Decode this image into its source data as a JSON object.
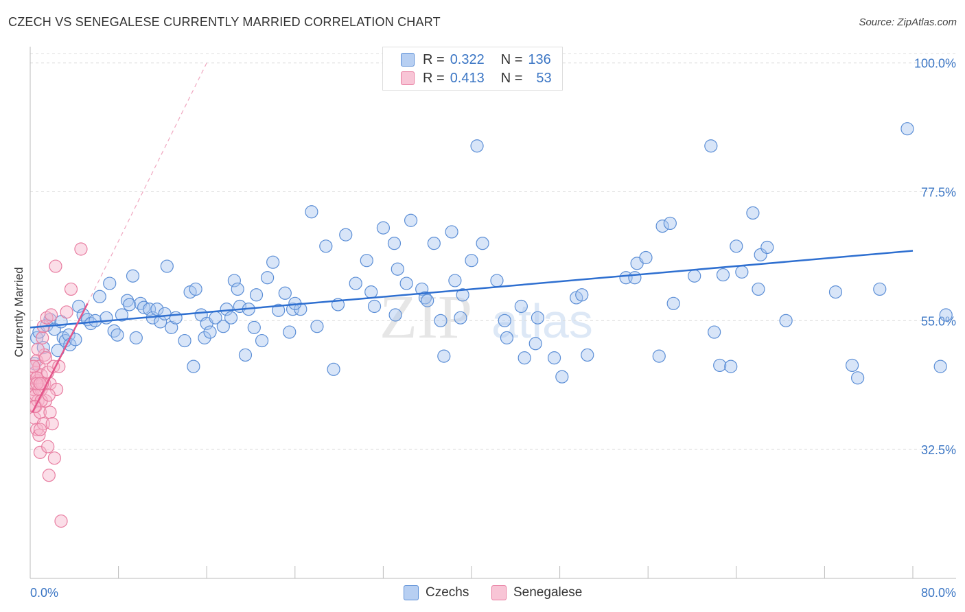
{
  "title": "CZECH VS SENEGALESE CURRENTLY MARRIED CORRELATION CHART",
  "source": "Source: ZipAtlas.com",
  "watermark": {
    "zip": "ZIP",
    "atlas": "atlas"
  },
  "colors": {
    "czech": "#5b8ed6",
    "czech_fill": "#a9c6f0",
    "senegalese": "#e87ca0",
    "senegalese_fill": "#f6b6cb",
    "accent_text": "#3a75c4"
  },
  "legend": {
    "czech": {
      "r_label": "R =",
      "r_value": "0.322",
      "n_label": "N =",
      "n_value": "136"
    },
    "senegalese": {
      "r_label": "R =",
      "r_value": "0.413",
      "n_label": "N =",
      "n_value": "53"
    }
  },
  "bottom_legend": {
    "czech": "Czechs",
    "senegalese": "Senegalese"
  },
  "chart_data": {
    "type": "scatter",
    "title": "CZECH VS SENEGALESE CURRENTLY MARRIED CORRELATION CHART",
    "xlabel": "",
    "ylabel": "Currently Married",
    "xlim": [
      0,
      80
    ],
    "ylim": [
      10,
      102
    ],
    "x_tick_labels": [
      "0.0%",
      "80.0%"
    ],
    "y_ticks": [
      100,
      77.5,
      55,
      32.5
    ],
    "y_tick_labels": [
      "100.0%",
      "77.5%",
      "55.0%",
      "32.5%"
    ],
    "grid": true,
    "legend_position": "top-center",
    "series": [
      {
        "name": "Czechs",
        "color": "#5b8ed6",
        "trend": {
          "x": [
            0,
            80
          ],
          "y": [
            53.8,
            67.2
          ]
        },
        "points": [
          [
            0.4,
            47.5
          ],
          [
            0.6,
            52.0
          ],
          [
            0.8,
            53.0
          ],
          [
            1.2,
            50.3
          ],
          [
            1.5,
            54.2
          ],
          [
            1.8,
            55.2
          ],
          [
            2.2,
            53.5
          ],
          [
            2.5,
            49.8
          ],
          [
            2.8,
            54.8
          ],
          [
            3.0,
            52.0
          ],
          [
            3.2,
            51.5
          ],
          [
            3.5,
            52.5
          ],
          [
            3.6,
            50.8
          ],
          [
            4.1,
            51.7
          ],
          [
            4.4,
            57.5
          ],
          [
            4.8,
            56.0
          ],
          [
            5.2,
            55.2
          ],
          [
            5.5,
            54.5
          ],
          [
            5.9,
            55.0
          ],
          [
            6.3,
            59.2
          ],
          [
            6.9,
            55.5
          ],
          [
            7.2,
            61.5
          ],
          [
            7.6,
            53.2
          ],
          [
            7.9,
            52.5
          ],
          [
            8.3,
            56.0
          ],
          [
            8.8,
            58.5
          ],
          [
            9.0,
            57.8
          ],
          [
            9.3,
            62.8
          ],
          [
            9.6,
            52.0
          ],
          [
            10.0,
            58.0
          ],
          [
            10.3,
            57.3
          ],
          [
            10.8,
            57.0
          ],
          [
            11.1,
            55.5
          ],
          [
            11.5,
            57.0
          ],
          [
            11.8,
            54.8
          ],
          [
            12.2,
            56.2
          ],
          [
            12.4,
            64.5
          ],
          [
            12.8,
            53.8
          ],
          [
            13.2,
            55.5
          ],
          [
            14.0,
            51.5
          ],
          [
            14.5,
            60.0
          ],
          [
            14.8,
            47.0
          ],
          [
            15.0,
            60.5
          ],
          [
            15.5,
            56.0
          ],
          [
            15.8,
            52.0
          ],
          [
            16.0,
            54.5
          ],
          [
            16.3,
            53.0
          ],
          [
            16.8,
            55.5
          ],
          [
            17.5,
            54.0
          ],
          [
            17.8,
            57.0
          ],
          [
            18.2,
            55.5
          ],
          [
            18.5,
            62.0
          ],
          [
            18.8,
            60.5
          ],
          [
            19.0,
            57.5
          ],
          [
            19.5,
            49.0
          ],
          [
            19.8,
            57.0
          ],
          [
            20.3,
            53.8
          ],
          [
            20.5,
            59.5
          ],
          [
            21.0,
            51.5
          ],
          [
            21.5,
            62.5
          ],
          [
            22.0,
            65.2
          ],
          [
            22.5,
            56.8
          ],
          [
            23.1,
            59.8
          ],
          [
            23.5,
            53.0
          ],
          [
            23.8,
            57.0
          ],
          [
            24.5,
            57.0
          ],
          [
            25.5,
            74.0
          ],
          [
            26.0,
            54.0
          ],
          [
            26.8,
            68.0
          ],
          [
            27.5,
            46.5
          ],
          [
            27.9,
            57.8
          ],
          [
            28.6,
            70.0
          ],
          [
            29.5,
            61.5
          ],
          [
            30.5,
            65.5
          ],
          [
            30.9,
            60.0
          ],
          [
            31.2,
            57.5
          ],
          [
            32.0,
            71.2
          ],
          [
            33.0,
            68.5
          ],
          [
            33.1,
            56.0
          ],
          [
            33.3,
            64.0
          ],
          [
            34.1,
            61.5
          ],
          [
            34.5,
            72.5
          ],
          [
            35.5,
            60.5
          ],
          [
            35.8,
            59.0
          ],
          [
            36.0,
            58.5
          ],
          [
            36.6,
            68.5
          ],
          [
            37.2,
            55.0
          ],
          [
            37.5,
            48.8
          ],
          [
            38.2,
            70.5
          ],
          [
            38.5,
            62.0
          ],
          [
            39.0,
            55.5
          ],
          [
            39.2,
            59.5
          ],
          [
            40.0,
            65.5
          ],
          [
            40.5,
            85.5
          ],
          [
            41.0,
            68.5
          ],
          [
            42.3,
            62.0
          ],
          [
            43.0,
            55.0
          ],
          [
            43.2,
            52.0
          ],
          [
            44.5,
            57.5
          ],
          [
            44.8,
            48.5
          ],
          [
            45.8,
            51.0
          ],
          [
            46.0,
            55.5
          ],
          [
            47.5,
            48.5
          ],
          [
            48.2,
            45.2
          ],
          [
            49.5,
            59.0
          ],
          [
            50.0,
            59.5
          ],
          [
            50.5,
            49.0
          ],
          [
            54.0,
            62.5
          ],
          [
            54.8,
            62.5
          ],
          [
            55.0,
            65.0
          ],
          [
            55.8,
            66.0
          ],
          [
            57.0,
            48.8
          ],
          [
            57.3,
            71.5
          ],
          [
            58.0,
            72.0
          ],
          [
            58.3,
            58.0
          ],
          [
            60.2,
            62.8
          ],
          [
            61.7,
            85.5
          ],
          [
            62.0,
            53.0
          ],
          [
            62.5,
            47.2
          ],
          [
            62.8,
            63.0
          ],
          [
            63.5,
            47.0
          ],
          [
            64.0,
            68.0
          ],
          [
            64.5,
            63.5
          ],
          [
            65.5,
            73.8
          ],
          [
            66.0,
            60.5
          ],
          [
            66.2,
            66.5
          ],
          [
            66.8,
            67.8
          ],
          [
            68.5,
            55.0
          ],
          [
            73.0,
            60.0
          ],
          [
            74.5,
            47.2
          ],
          [
            75.0,
            45.0
          ],
          [
            77.0,
            60.5
          ],
          [
            79.5,
            88.5
          ],
          [
            82.5,
            47.0
          ],
          [
            83.0,
            56.0
          ],
          [
            24.0,
            58.0
          ]
        ]
      },
      {
        "name": "Senegalese",
        "color": "#e87ca0",
        "trend": {
          "x": [
            0.2,
            5.2
          ],
          "y": [
            39.0,
            58.0
          ]
        },
        "trend_ext": {
          "x": [
            5.2,
            16
          ],
          "y": [
            58.0,
            100
          ]
        },
        "points": [
          [
            0.2,
            42
          ],
          [
            0.3,
            43
          ],
          [
            0.3,
            45
          ],
          [
            0.4,
            38
          ],
          [
            0.4,
            44
          ],
          [
            0.5,
            40
          ],
          [
            0.5,
            46
          ],
          [
            0.6,
            36
          ],
          [
            0.6,
            48
          ],
          [
            0.7,
            41
          ],
          [
            0.7,
            44.5
          ],
          [
            0.8,
            35
          ],
          [
            0.8,
            47
          ],
          [
            0.9,
            32
          ],
          [
            0.9,
            39
          ],
          [
            1.0,
            43
          ],
          [
            1.0,
            45.5
          ],
          [
            1.1,
            52
          ],
          [
            1.2,
            37
          ],
          [
            1.2,
            54
          ],
          [
            1.3,
            44
          ],
          [
            1.3,
            49
          ],
          [
            1.4,
            41
          ],
          [
            1.5,
            55.5
          ],
          [
            1.6,
            33
          ],
          [
            1.6,
            46
          ],
          [
            1.7,
            28
          ],
          [
            1.8,
            39
          ],
          [
            1.8,
            44
          ],
          [
            1.9,
            56
          ],
          [
            2.0,
            37
          ],
          [
            2.1,
            47
          ],
          [
            2.2,
            31
          ],
          [
            2.3,
            64.5
          ],
          [
            2.4,
            43
          ],
          [
            2.6,
            47
          ],
          [
            2.8,
            20
          ],
          [
            3.3,
            56.5
          ],
          [
            3.7,
            60.5
          ],
          [
            4.6,
            67.5
          ],
          [
            0.3,
            47
          ],
          [
            0.5,
            42
          ],
          [
            0.6,
            45
          ],
          [
            0.7,
            50
          ],
          [
            0.8,
            43
          ],
          [
            0.9,
            36
          ],
          [
            1.0,
            41
          ],
          [
            1.1,
            44
          ],
          [
            1.4,
            48.5
          ],
          [
            1.7,
            42
          ],
          [
            0.4,
            40
          ],
          [
            0.6,
            44
          ],
          [
            0.9,
            44
          ]
        ]
      }
    ]
  }
}
